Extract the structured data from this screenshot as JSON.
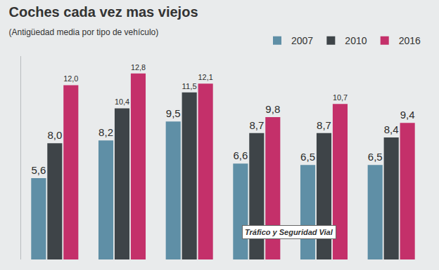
{
  "chart_data": {
    "type": "bar",
    "title": "Coches cada vez mas viejos",
    "subtitle": "(Antigüedad media por tipo de vehículo)",
    "categories": [
      null,
      null,
      null,
      null,
      null,
      null
    ],
    "series": [
      {
        "name": "2007",
        "color": "#5f8fa6",
        "values": [
          5.6,
          8.2,
          9.5,
          6.6,
          6.5,
          6.5
        ],
        "value_labels": [
          "5,6",
          "8,2",
          "9,5",
          "6,6",
          "6,5",
          "6,5"
        ]
      },
      {
        "name": "2010",
        "color": "#3e4448",
        "values": [
          8.0,
          10.4,
          11.5,
          8.7,
          8.7,
          8.4
        ],
        "value_labels": [
          "8,0",
          "10,4",
          "11,5",
          "8,7",
          "8,7",
          "8,4"
        ]
      },
      {
        "name": "2016",
        "color": "#c4306a",
        "values": [
          12.0,
          12.8,
          12.1,
          9.8,
          10.7,
          9.4
        ],
        "value_labels": [
          "12,0",
          "12,8",
          "12,1",
          "9,8",
          "10,7",
          "9,4"
        ]
      }
    ],
    "ylim": [
      0,
      14
    ],
    "yticks": [],
    "data_labels": true,
    "tick_labels": false,
    "grid": false,
    "legend": "top-right",
    "annotations": [
      "Tráfico y Seguridad Vial"
    ]
  }
}
